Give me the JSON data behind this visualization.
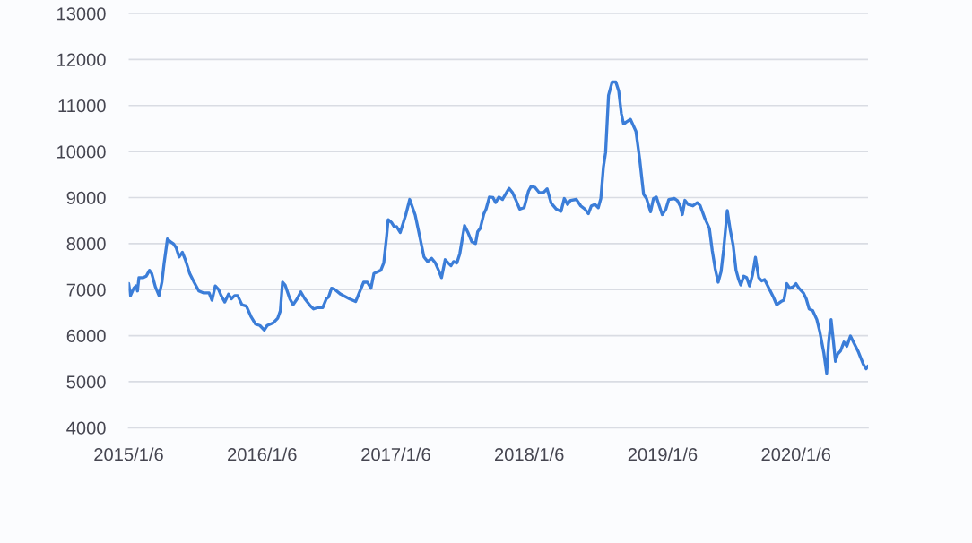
{
  "chart_data": {
    "type": "line",
    "x": [
      "2015-01-06",
      "2015-01-11",
      "2015-01-20",
      "2015-01-26",
      "2015-01-30",
      "2015-02-03",
      "2015-02-15",
      "2015-02-23",
      "2015-03-04",
      "2015-03-10",
      "2015-03-20",
      "2015-03-30",
      "2015-04-07",
      "2015-04-13",
      "2015-04-22",
      "2015-04-30",
      "2015-05-08",
      "2015-05-16",
      "2015-05-24",
      "2015-06-02",
      "2015-06-10",
      "2015-06-22",
      "2015-07-04",
      "2015-07-17",
      "2015-07-29",
      "2015-08-14",
      "2015-08-22",
      "2015-08-31",
      "2015-09-09",
      "2015-09-16",
      "2015-09-26",
      "2015-10-06",
      "2015-10-14",
      "2015-10-23",
      "2015-10-31",
      "2015-11-12",
      "2015-11-24",
      "2015-12-07",
      "2015-12-19",
      "2015-12-31",
      "2016-01-12",
      "2016-01-20",
      "2016-02-06",
      "2016-02-18",
      "2016-02-25",
      "2016-03-02",
      "2016-03-09",
      "2016-03-22",
      "2016-03-31",
      "2016-04-11",
      "2016-04-21",
      "2016-05-02",
      "2016-05-18",
      "2016-05-26",
      "2016-06-07",
      "2016-06-20",
      "2016-06-30",
      "2016-07-06",
      "2016-07-14",
      "2016-07-22",
      "2016-08-08",
      "2016-09-01",
      "2016-09-18",
      "2016-09-30",
      "2016-10-10",
      "2016-10-20",
      "2016-10-30",
      "2016-11-07",
      "2016-11-26",
      "2016-12-04",
      "2016-12-12",
      "2016-12-16",
      "2016-12-25",
      "2017-01-02",
      "2017-01-08",
      "2017-01-18",
      "2017-02-02",
      "2017-02-13",
      "2017-02-28",
      "2017-03-12",
      "2017-03-24",
      "2017-04-03",
      "2017-04-14",
      "2017-04-24",
      "2017-05-03",
      "2017-05-11",
      "2017-05-21",
      "2017-05-29",
      "2017-06-06",
      "2017-06-13",
      "2017-06-22",
      "2017-06-30",
      "2017-07-13",
      "2017-07-23",
      "2017-08-02",
      "2017-08-12",
      "2017-08-18",
      "2017-08-25",
      "2017-09-04",
      "2017-09-10",
      "2017-09-19",
      "2017-09-29",
      "2017-10-06",
      "2017-10-15",
      "2017-10-25",
      "2017-11-02",
      "2017-11-12",
      "2017-11-21",
      "2017-12-01",
      "2017-12-11",
      "2017-12-23",
      "2018-01-04",
      "2018-01-11",
      "2018-01-22",
      "2018-02-02",
      "2018-02-14",
      "2018-02-24",
      "2018-03-07",
      "2018-03-21",
      "2018-04-03",
      "2018-04-12",
      "2018-04-21",
      "2018-04-29",
      "2018-05-15",
      "2018-05-27",
      "2018-06-07",
      "2018-06-17",
      "2018-06-25",
      "2018-07-05",
      "2018-07-14",
      "2018-07-21",
      "2018-07-28",
      "2018-08-03",
      "2018-08-11",
      "2018-08-21",
      "2018-08-31",
      "2018-09-08",
      "2018-09-15",
      "2018-09-21",
      "2018-09-27",
      "2018-10-10",
      "2018-10-25",
      "2018-11-04",
      "2018-11-15",
      "2018-11-23",
      "2018-12-04",
      "2018-12-12",
      "2018-12-20",
      "2018-12-28",
      "2019-01-05",
      "2019-01-15",
      "2019-01-23",
      "2019-02-07",
      "2019-02-15",
      "2019-02-23",
      "2019-03-01",
      "2019-03-08",
      "2019-03-17",
      "2019-03-30",
      "2019-04-11",
      "2019-04-19",
      "2019-05-01",
      "2019-05-14",
      "2019-05-22",
      "2019-05-30",
      "2019-06-07",
      "2019-06-15",
      "2019-06-22",
      "2019-07-02",
      "2019-07-10",
      "2019-07-18",
      "2019-07-26",
      "2019-08-02",
      "2019-08-08",
      "2019-08-16",
      "2019-08-24",
      "2019-09-01",
      "2019-09-09",
      "2019-09-17",
      "2019-09-26",
      "2019-10-04",
      "2019-10-12",
      "2019-10-24",
      "2019-11-05",
      "2019-11-14",
      "2019-11-26",
      "2019-12-04",
      "2019-12-12",
      "2019-12-20",
      "2019-12-29",
      "2020-01-06",
      "2020-01-14",
      "2020-01-26",
      "2020-02-03",
      "2020-02-11",
      "2020-02-21",
      "2020-03-03",
      "2020-03-11",
      "2020-03-22",
      "2020-03-30",
      "2020-04-04",
      "2020-04-11",
      "2020-04-17",
      "2020-04-23",
      "2020-04-29",
      "2020-05-07",
      "2020-05-16",
      "2020-05-24",
      "2020-06-03",
      "2020-06-13",
      "2020-06-25",
      "2020-07-08",
      "2020-07-16",
      "2020-07-21"
    ],
    "values": [
      7130,
      6870,
      7030,
      7080,
      6970,
      7260,
      7260,
      7290,
      7420,
      7350,
      7060,
      6870,
      7160,
      7580,
      8100,
      8040,
      8000,
      7910,
      7710,
      7810,
      7650,
      7350,
      7160,
      6970,
      6930,
      6930,
      6770,
      7080,
      7000,
      6870,
      6730,
      6900,
      6800,
      6870,
      6870,
      6670,
      6640,
      6410,
      6250,
      6220,
      6120,
      6220,
      6280,
      6380,
      6540,
      7160,
      7100,
      6800,
      6670,
      6800,
      6950,
      6800,
      6640,
      6580,
      6610,
      6610,
      6800,
      6840,
      7030,
      7010,
      6900,
      6800,
      6740,
      6970,
      7160,
      7160,
      7030,
      7350,
      7420,
      7580,
      8170,
      8520,
      8460,
      8360,
      8370,
      8240,
      8620,
      8960,
      8620,
      8170,
      7710,
      7610,
      7680,
      7580,
      7420,
      7260,
      7650,
      7580,
      7520,
      7610,
      7580,
      7780,
      8390,
      8230,
      8040,
      8000,
      8260,
      8330,
      8650,
      8750,
      9010,
      9000,
      8890,
      9010,
      8960,
      9070,
      9200,
      9110,
      8940,
      8750,
      8780,
      9140,
      9240,
      9220,
      9110,
      9110,
      9190,
      8880,
      8750,
      8700,
      8980,
      8850,
      8940,
      8960,
      8820,
      8750,
      8650,
      8820,
      8850,
      8780,
      8980,
      9660,
      9980,
      11220,
      11510,
      11510,
      11310,
      10830,
      10600,
      10630,
      10700,
      10440,
      9850,
      9070,
      8980,
      8690,
      8980,
      9010,
      8820,
      8630,
      8750,
      8960,
      8980,
      8940,
      8820,
      8630,
      8940,
      8850,
      8820,
      8890,
      8820,
      8560,
      8330,
      7840,
      7450,
      7160,
      7390,
      7870,
      8720,
      8300,
      7970,
      7420,
      7220,
      7100,
      7290,
      7260,
      7080,
      7320,
      7700,
      7260,
      7190,
      7220,
      7030,
      6840,
      6670,
      6740,
      6770,
      7130,
      7030,
      7060,
      7130,
      7030,
      6930,
      6800,
      6580,
      6540,
      6350,
      6090,
      5630,
      5180,
      5830,
      6350,
      5900,
      5440,
      5600,
      5670,
      5860,
      5770,
      5990,
      5830,
      5640,
      5380,
      5280,
      5340
    ],
    "color": "#3b7dd8",
    "xlim": [
      "2015-01-06",
      "2020-07-21"
    ],
    "xticks": [
      {
        "value": "2015-01-06",
        "label": "2015/1/6"
      },
      {
        "value": "2016-01-06",
        "label": "2016/1/6"
      },
      {
        "value": "2017-01-06",
        "label": "2017/1/6"
      },
      {
        "value": "2018-01-06",
        "label": "2018/1/6"
      },
      {
        "value": "2019-01-06",
        "label": "2019/1/6"
      },
      {
        "value": "2020-01-06",
        "label": "2020/1/6"
      }
    ],
    "ylim": [
      4000,
      13000
    ],
    "yticks": [
      4000,
      5000,
      6000,
      7000,
      8000,
      9000,
      10000,
      11000,
      12000,
      13000
    ],
    "grid": "y"
  }
}
